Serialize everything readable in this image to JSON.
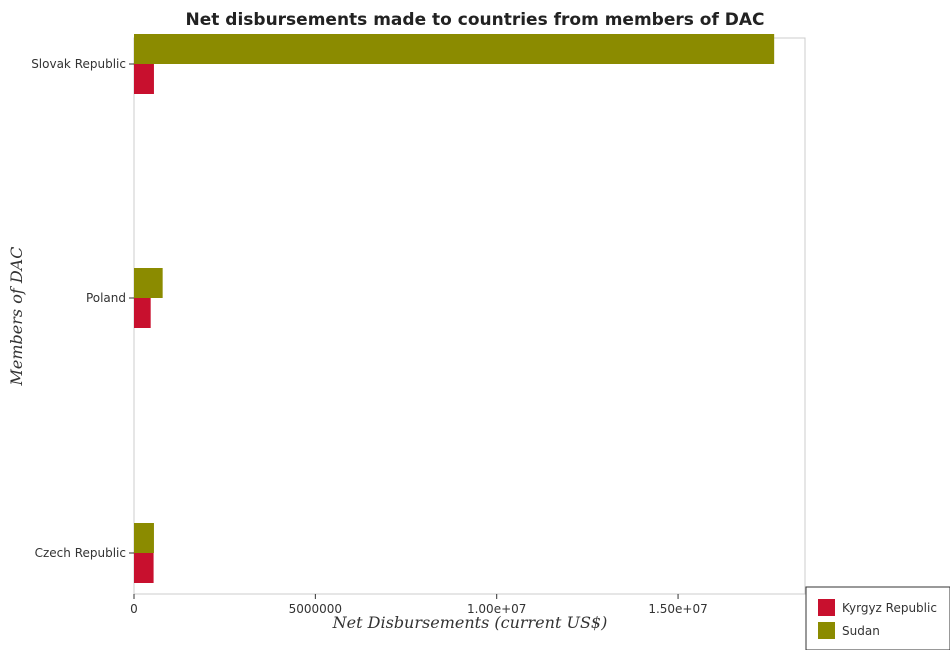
{
  "chart_data": {
    "type": "bar",
    "orientation": "horizontal",
    "title": "Net disbursements made to countries from members of DAC",
    "xlabel": "Net Disbursements (current US$)",
    "ylabel": "Members of DAC",
    "categories": [
      "Czech Republic",
      "Poland",
      "Slovak Republic"
    ],
    "series": [
      {
        "name": "Kyrgyz Republic",
        "color": "#c8102e",
        "values": [
          540000,
          460000,
          550000
        ]
      },
      {
        "name": "Sudan",
        "color": "#8b8b00",
        "values": [
          550000,
          790000,
          17650000
        ]
      }
    ],
    "xticks": [
      0,
      5000000,
      10000000,
      15000000
    ],
    "xtick_labels": [
      "0",
      "5000000",
      "1.00e+07",
      "1.50e+07"
    ],
    "xlim": [
      0,
      18500000
    ],
    "grid": false,
    "legend_position": "bottom-right"
  }
}
